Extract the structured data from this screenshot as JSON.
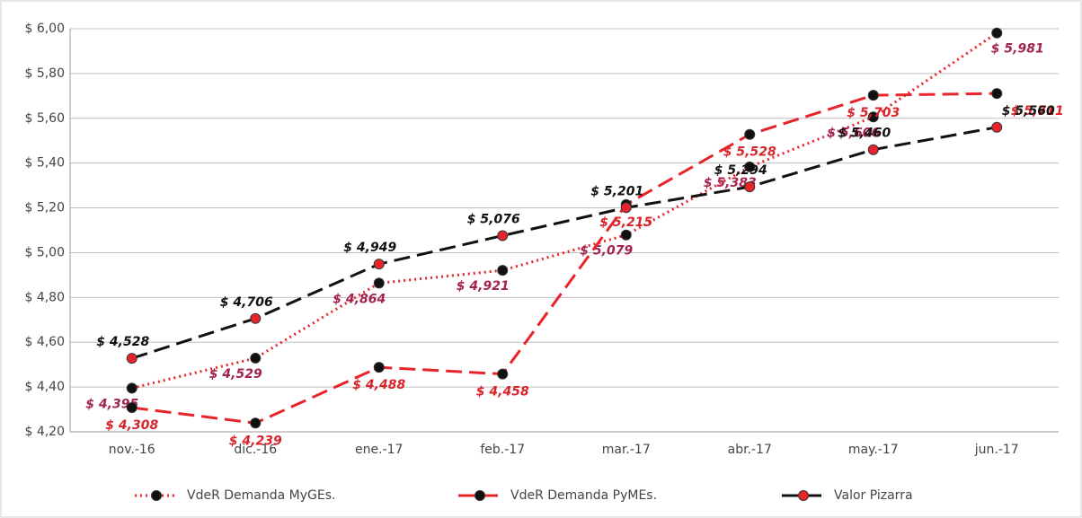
{
  "chart_data": {
    "type": "line",
    "categories": [
      "nov.-16",
      "dic.-16",
      "ene.-17",
      "feb.-17",
      "mar.-17",
      "abr.-17",
      "may.-17",
      "jun.-17"
    ],
    "series": [
      {
        "name": "VdeR Demanda MyGEs.",
        "color": "#e8242b",
        "marker_color": "#111111",
        "label_color": "#a3224f",
        "line_style": "dotted",
        "values": [
          4.395,
          4.529,
          4.864,
          4.921,
          5.079,
          5.383,
          5.606,
          5.981
        ],
        "value_labels": [
          "$ 4,395",
          "$ 4,529",
          "$ 4,864",
          "$ 4,921",
          "$ 5,079",
          "$ 5,383",
          "$ 5,606",
          "$ 5,981"
        ]
      },
      {
        "name": "VdeR Demanda PyMEs.",
        "color": "#e8242b",
        "marker_color": "#111111",
        "label_color": "#d9232a",
        "line_style": "dashed",
        "values": [
          4.308,
          4.239,
          4.488,
          4.458,
          5.215,
          5.528,
          5.703,
          5.711
        ],
        "value_labels": [
          "$ 4,308",
          "$ 4,239",
          "$ 4,488",
          "$ 4,458",
          "$ 5,215",
          "$ 5,528",
          "$ 5,703",
          "$ 5,711"
        ]
      },
      {
        "name": "Valor Pizarra",
        "color": "#111111",
        "marker_color": "#e8242b",
        "label_color": "#111111",
        "line_style": "dashed",
        "values": [
          4.528,
          4.706,
          4.949,
          5.076,
          5.201,
          5.294,
          5.46,
          5.56
        ],
        "value_labels": [
          "$ 4,528",
          "$ 4,706",
          "$ 4,949",
          "$ 5,076",
          "$ 5,201",
          "$ 5,294",
          "$ 5,460",
          "$ 5,560"
        ]
      }
    ],
    "ylim": [
      4.2,
      6.0
    ],
    "yticks": [
      {
        "value": 4.2,
        "label": "$ 4,20"
      },
      {
        "value": 4.4,
        "label": "$ 4,40"
      },
      {
        "value": 4.6,
        "label": "$ 4,60"
      },
      {
        "value": 4.8,
        "label": "$ 4,80"
      },
      {
        "value": 5.0,
        "label": "$ 5,00"
      },
      {
        "value": 5.2,
        "label": "$ 5,20"
      },
      {
        "value": 5.4,
        "label": "$ 5,40"
      },
      {
        "value": 5.6,
        "label": "$ 5,60"
      },
      {
        "value": 5.8,
        "label": "$ 5,80"
      },
      {
        "value": 6.0,
        "label": "$ 6,00"
      }
    ],
    "grid": true,
    "legend": "bottom"
  }
}
